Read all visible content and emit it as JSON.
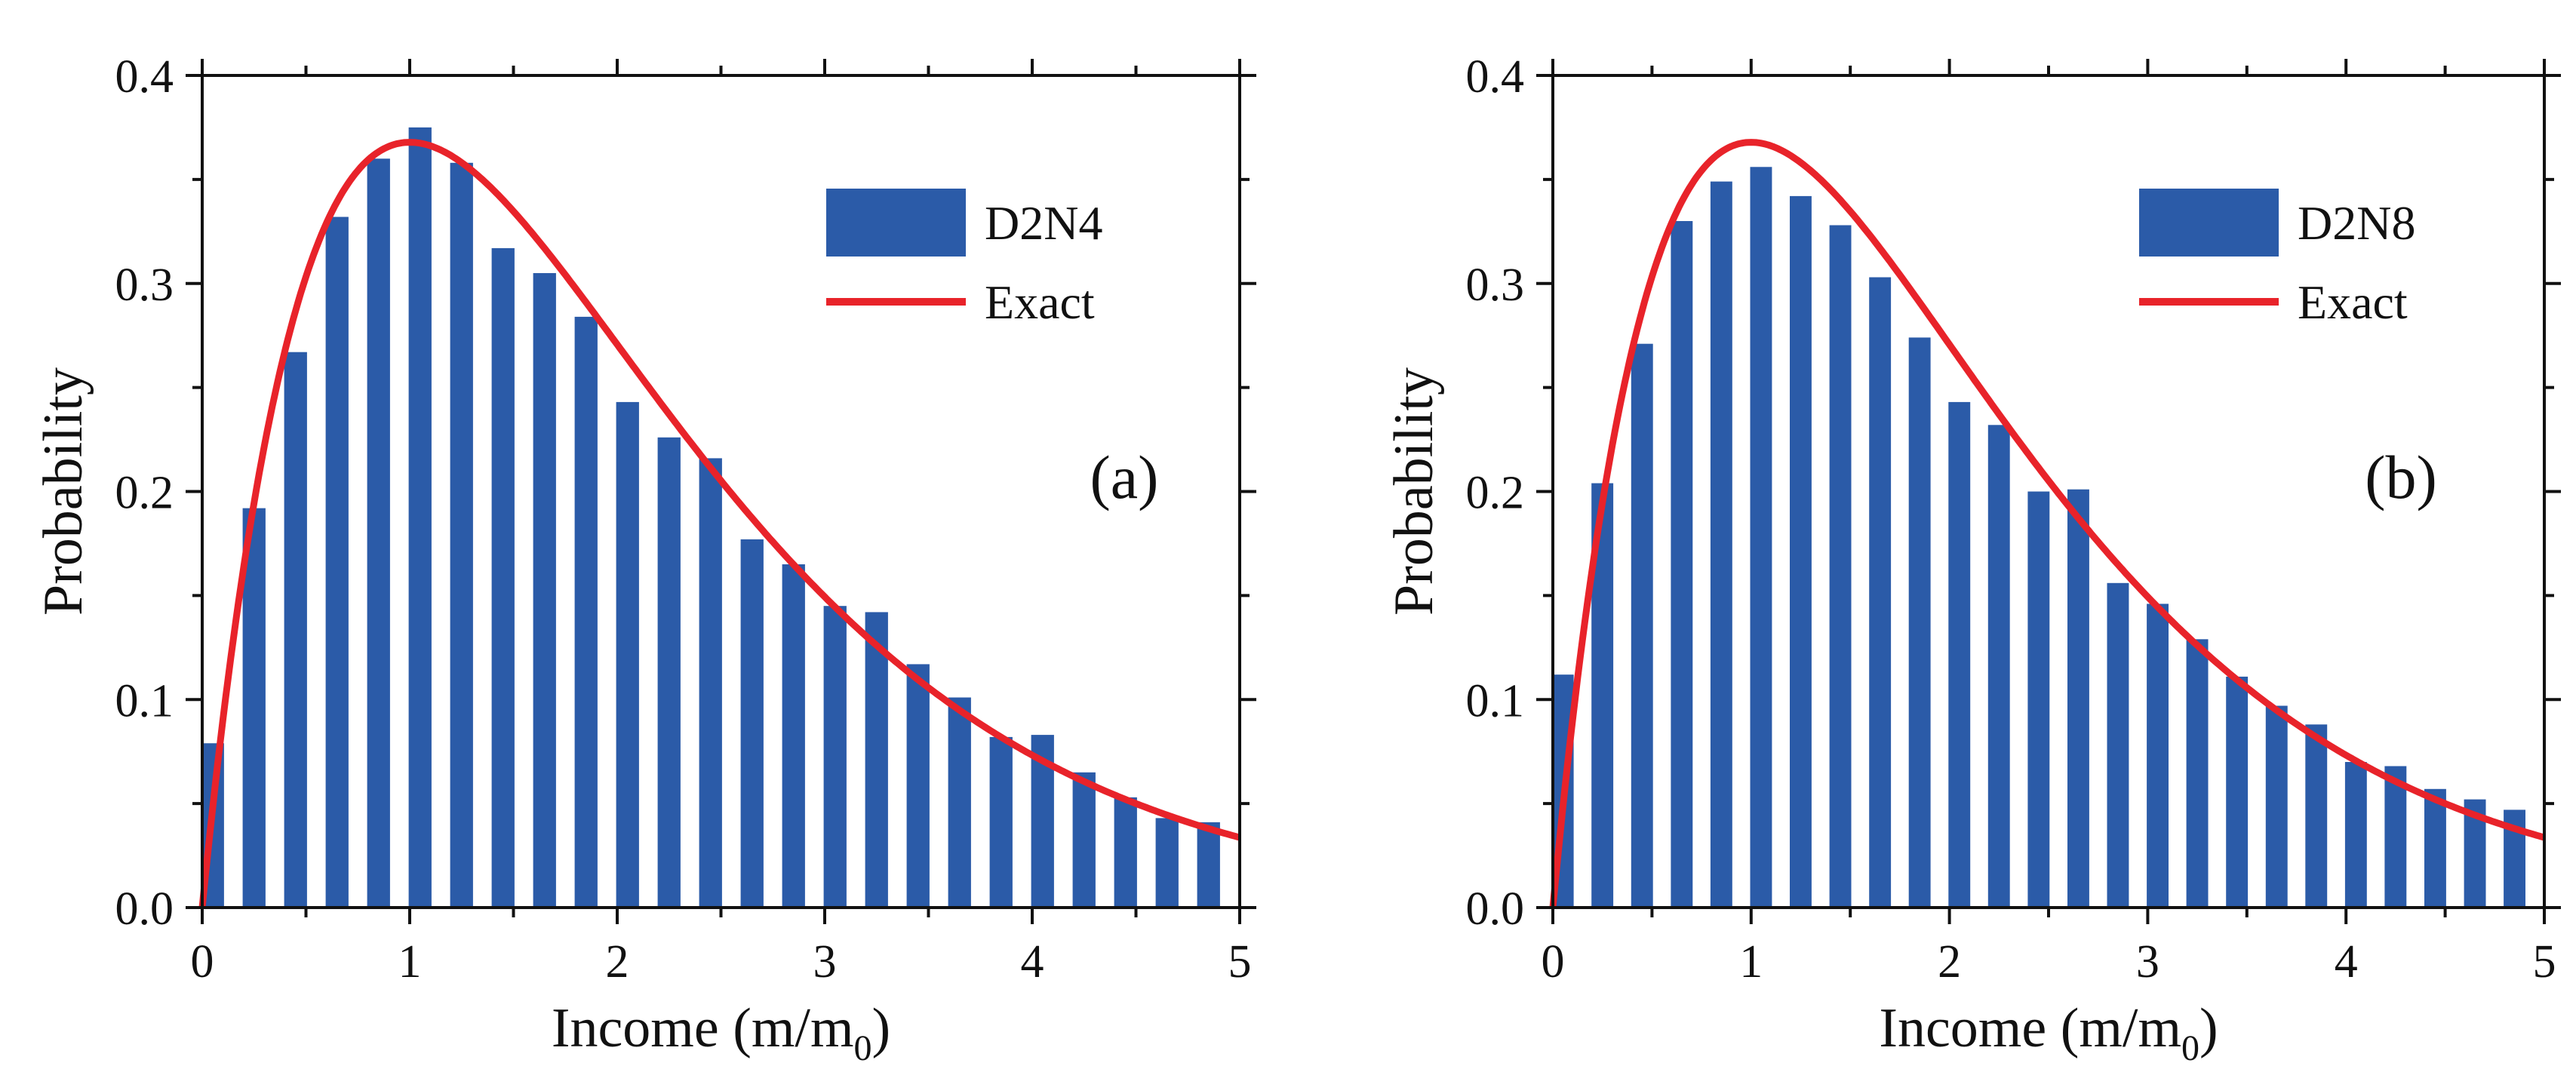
{
  "chart_data": [
    {
      "type": "bar",
      "panel_label": "(a)",
      "xlabel": "Income (m/m",
      "xlabel_subscript": "0",
      "xlabel_suffix": ")",
      "ylabel": "Probability",
      "xlim": [
        0,
        5
      ],
      "ylim": [
        0,
        0.4
      ],
      "xticks": [
        "0",
        "1",
        "2",
        "3",
        "4",
        "5"
      ],
      "yticks": [
        "0.0",
        "0.1",
        "0.2",
        "0.3",
        "0.4"
      ],
      "legend_position": "top-right",
      "series": [
        {
          "name": "D2N4",
          "kind": "bar",
          "color": "#2b5ba8",
          "x": [
            0.05,
            0.25,
            0.45,
            0.65,
            0.85,
            1.05,
            1.25,
            1.45,
            1.65,
            1.85,
            2.05,
            2.25,
            2.45,
            2.65,
            2.85,
            3.05,
            3.25,
            3.45,
            3.65,
            3.85,
            4.05,
            4.25,
            4.45,
            4.65,
            4.85
          ],
          "values": [
            0.079,
            0.192,
            0.267,
            0.332,
            0.36,
            0.375,
            0.358,
            0.317,
            0.305,
            0.284,
            0.243,
            0.226,
            0.216,
            0.177,
            0.165,
            0.145,
            0.142,
            0.117,
            0.101,
            0.082,
            0.083,
            0.065,
            0.053,
            0.043,
            0.041
          ]
        },
        {
          "name": "Exact",
          "kind": "line",
          "color": "#e8232a",
          "function": "x*exp(-x)"
        }
      ]
    },
    {
      "type": "bar",
      "panel_label": "(b)",
      "xlabel": "Income (m/m",
      "xlabel_subscript": "0",
      "xlabel_suffix": ")",
      "ylabel": "Probability",
      "xlim": [
        0,
        5
      ],
      "ylim": [
        0,
        0.4
      ],
      "xticks": [
        "0",
        "1",
        "2",
        "3",
        "4",
        "5"
      ],
      "yticks": [
        "0.0",
        "0.1",
        "0.2",
        "0.3",
        "0.4"
      ],
      "legend_position": "top-right",
      "series": [
        {
          "name": "D2N8",
          "kind": "bar",
          "color": "#2b5ba8",
          "x": [
            0.05,
            0.25,
            0.45,
            0.65,
            0.85,
            1.05,
            1.25,
            1.45,
            1.65,
            1.85,
            2.05,
            2.25,
            2.45,
            2.65,
            2.85,
            3.05,
            3.25,
            3.45,
            3.65,
            3.85,
            4.05,
            4.25,
            4.45,
            4.65,
            4.85
          ],
          "values": [
            0.112,
            0.204,
            0.271,
            0.33,
            0.349,
            0.356,
            0.342,
            0.328,
            0.303,
            0.274,
            0.243,
            0.232,
            0.2,
            0.201,
            0.156,
            0.146,
            0.129,
            0.111,
            0.097,
            0.088,
            0.07,
            0.068,
            0.057,
            0.052,
            0.047
          ]
        },
        {
          "name": "Exact",
          "kind": "line",
          "color": "#e8232a",
          "function": "x*exp(-x)"
        }
      ]
    }
  ]
}
